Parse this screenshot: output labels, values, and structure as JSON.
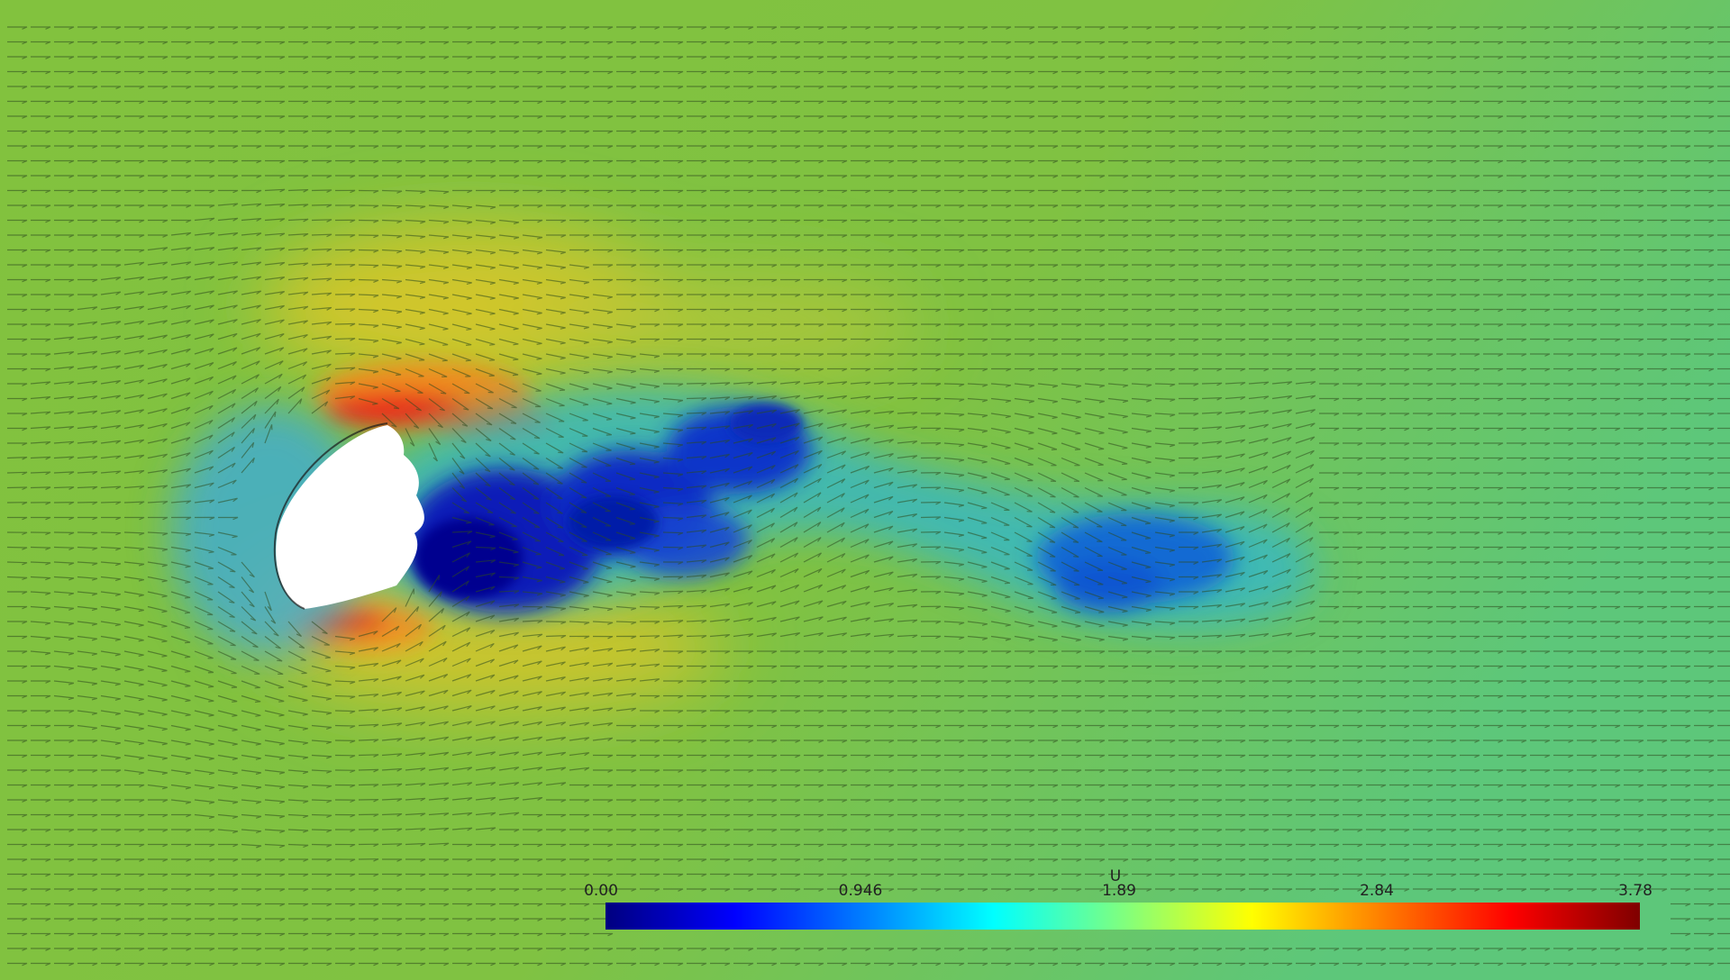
{
  "visualization": {
    "field": "velocity-magnitude",
    "background_color": "#80c242",
    "obstacle_color": "#ffffff"
  },
  "colorbar": {
    "title": "U",
    "ticks": [
      "0.00",
      "0.946",
      "1.89",
      "2.84",
      "3.78"
    ],
    "min": 0.0,
    "max": 3.78,
    "colormap": [
      "#00007f",
      "#0000ff",
      "#007fff",
      "#00ffff",
      "#7fff7f",
      "#ffff00",
      "#ff7f00",
      "#ff0000",
      "#7f0000"
    ]
  }
}
